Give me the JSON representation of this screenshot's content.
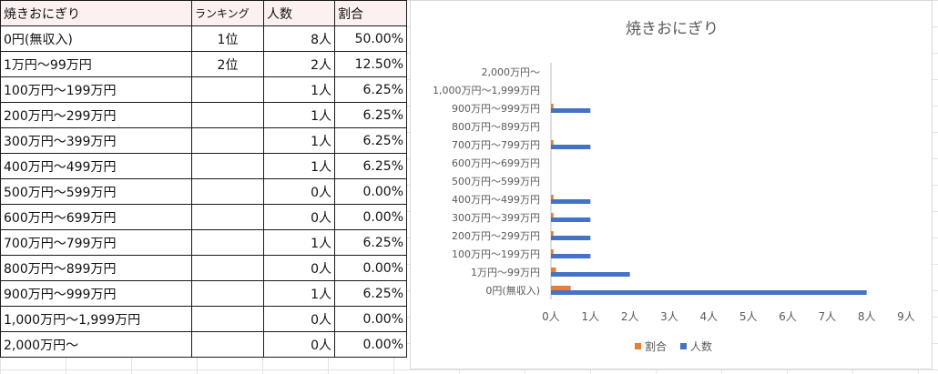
{
  "table": {
    "headers": [
      "焼きおにぎり",
      "ランキング",
      "人数",
      "割合"
    ],
    "rows": [
      {
        "label": "0円(無収入)",
        "rank": "1位",
        "count": "8人",
        "pct": "50.00%"
      },
      {
        "label": "1万円〜99万円",
        "rank": "2位",
        "count": "2人",
        "pct": "12.50%"
      },
      {
        "label": "100万円〜199万円",
        "rank": "",
        "count": "1人",
        "pct": "6.25%"
      },
      {
        "label": "200万円〜299万円",
        "rank": "",
        "count": "1人",
        "pct": "6.25%"
      },
      {
        "label": "300万円〜399万円",
        "rank": "",
        "count": "1人",
        "pct": "6.25%"
      },
      {
        "label": "400万円〜499万円",
        "rank": "",
        "count": "1人",
        "pct": "6.25%"
      },
      {
        "label": "500万円〜599万円",
        "rank": "",
        "count": "0人",
        "pct": "0.00%"
      },
      {
        "label": "600万円〜699万円",
        "rank": "",
        "count": "0人",
        "pct": "0.00%"
      },
      {
        "label": "700万円〜799万円",
        "rank": "",
        "count": "1人",
        "pct": "6.25%"
      },
      {
        "label": "800万円〜899万円",
        "rank": "",
        "count": "0人",
        "pct": "0.00%"
      },
      {
        "label": "900万円〜999万円",
        "rank": "",
        "count": "1人",
        "pct": "6.25%"
      },
      {
        "label": "1,000万円〜1,999万円",
        "rank": "",
        "count": "0人",
        "pct": "0.00%"
      },
      {
        "label": "2,000万円〜",
        "rank": "",
        "count": "0人",
        "pct": "0.00%"
      }
    ]
  },
  "colors": {
    "count": "#4472c4",
    "pct": "#ed7d31",
    "rank_text": "#dd1111",
    "header_bg": "#fdf0f0"
  },
  "chart_data": {
    "type": "bar",
    "orientation": "horizontal",
    "title": "焼きおにぎり",
    "categories": [
      "0円(無収入)",
      "1万円〜99万円",
      "100万円〜199万円",
      "200万円〜299万円",
      "300万円〜399万円",
      "400万円〜499万円",
      "500万円〜599万円",
      "600万円〜699万円",
      "700万円〜799万円",
      "800万円〜899万円",
      "900万円〜999万円",
      "1,000万円〜1,999万円",
      "2,000万円〜"
    ],
    "series": [
      {
        "name": "人数",
        "values": [
          8,
          2,
          1,
          1,
          1,
          1,
          0,
          0,
          1,
          0,
          1,
          0,
          0
        ]
      },
      {
        "name": "割合",
        "values": [
          0.5,
          0.125,
          0.0625,
          0.0625,
          0.0625,
          0.0625,
          0,
          0,
          0.0625,
          0,
          0.0625,
          0,
          0
        ]
      }
    ],
    "xticks": [
      "0人",
      "1人",
      "2人",
      "3人",
      "4人",
      "5人",
      "6人",
      "7人",
      "8人",
      "9人"
    ],
    "xlim": [
      0,
      9
    ],
    "legend": {
      "position": "bottom",
      "entries": [
        "割合",
        "人数"
      ]
    },
    "grid": false
  }
}
